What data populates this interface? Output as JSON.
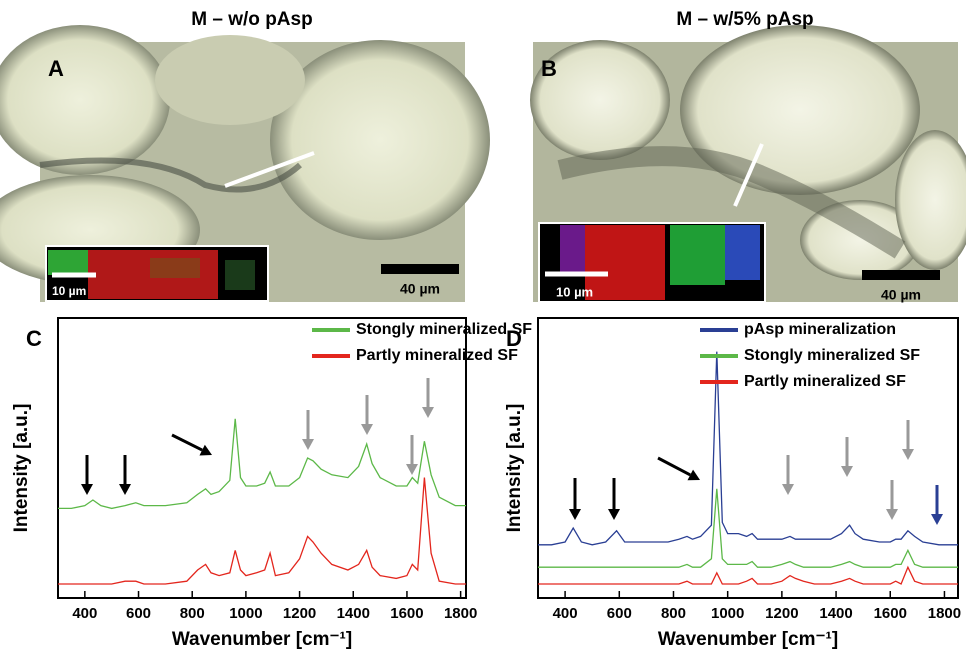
{
  "panels": [
    {
      "title": "M – w/o pAsp",
      "label": "A",
      "scale_bar": "40 µm",
      "inset_scale_bar": "10 µm"
    },
    {
      "title": "M – w/5% pAsp",
      "label": "B",
      "scale_bar": "40 µm",
      "inset_scale_bar": "10 µm"
    }
  ],
  "chart_data": [
    {
      "type": "line",
      "panel_label": "C",
      "x_label": "Wavenumber [cm⁻¹]",
      "y_label": "Intensity [a.u.]",
      "xlim": [
        300,
        1820
      ],
      "xticks": [
        400,
        600,
        800,
        1000,
        1200,
        1400,
        1600,
        1800
      ],
      "ylim": [
        0,
        100
      ],
      "legend": "upper right",
      "x": [
        300,
        350,
        400,
        430,
        460,
        500,
        550,
        590,
        620,
        700,
        780,
        820,
        850,
        870,
        900,
        940,
        960,
        980,
        1000,
        1040,
        1070,
        1090,
        1110,
        1160,
        1200,
        1230,
        1250,
        1280,
        1320,
        1380,
        1420,
        1450,
        1470,
        1500,
        1560,
        1600,
        1620,
        1640,
        1665,
        1690,
        1720,
        1780,
        1820
      ],
      "series": [
        {
          "name": "Stongly mineralized SF",
          "color": "#5cb848",
          "values": [
            32,
            32,
            33,
            35,
            33,
            32,
            33,
            34,
            33,
            33,
            34,
            37,
            39,
            37,
            38,
            42,
            64,
            43,
            40,
            40,
            41,
            45,
            40,
            40,
            43,
            50,
            49,
            46,
            44,
            43,
            47,
            55,
            48,
            43,
            40,
            40,
            43,
            41,
            56,
            44,
            36,
            33,
            33
          ]
        },
        {
          "name": "Partly mineralized SF",
          "color": "#e3261d",
          "values": [
            5,
            5,
            5,
            5,
            5,
            5,
            6,
            6,
            5,
            5,
            6,
            10,
            12,
            9,
            8,
            9,
            17,
            10,
            8,
            9,
            10,
            16,
            8,
            9,
            14,
            22,
            20,
            16,
            12,
            10,
            12,
            17,
            11,
            8,
            7,
            8,
            12,
            10,
            43,
            16,
            6,
            5,
            5
          ]
        }
      ]
    },
    {
      "type": "line",
      "panel_label": "D",
      "x_label": "Wavenumber [cm⁻¹]",
      "y_label": "Intensity [a.u.]",
      "xlim": [
        300,
        1850
      ],
      "xticks": [
        400,
        600,
        800,
        1000,
        1200,
        1400,
        1600,
        1800
      ],
      "ylim": [
        0,
        100
      ],
      "legend": "upper right",
      "x": [
        300,
        350,
        400,
        430,
        460,
        500,
        550,
        590,
        620,
        700,
        780,
        820,
        850,
        870,
        900,
        940,
        960,
        980,
        1000,
        1040,
        1070,
        1090,
        1110,
        1160,
        1200,
        1230,
        1250,
        1280,
        1320,
        1380,
        1420,
        1450,
        1470,
        1500,
        1560,
        1600,
        1620,
        1640,
        1665,
        1690,
        1720,
        1780,
        1850
      ],
      "series": [
        {
          "name": "pAsp mineralization",
          "color": "#2a3f94",
          "values": [
            19,
            19,
            20,
            25,
            20,
            19,
            20,
            24,
            20,
            20,
            20,
            21,
            22,
            21,
            22,
            26,
            88,
            27,
            23,
            23,
            22,
            23,
            21,
            21,
            21,
            22,
            21,
            21,
            21,
            21,
            23,
            26,
            23,
            21,
            20,
            20,
            21,
            21,
            24,
            22,
            20,
            19,
            19
          ]
        },
        {
          "name": "Stongly mineralized SF",
          "color": "#5cb848",
          "values": [
            11,
            11,
            11,
            11,
            11,
            11,
            11,
            11,
            11,
            11,
            11,
            11,
            12,
            11,
            11,
            14,
            39,
            14,
            12,
            12,
            12,
            13,
            11,
            11,
            12,
            13,
            12,
            11,
            11,
            11,
            12,
            13,
            12,
            11,
            11,
            11,
            12,
            12,
            17,
            12,
            11,
            11,
            11
          ]
        },
        {
          "name": "Partly mineralized SF",
          "color": "#e3261d",
          "values": [
            5,
            5,
            5,
            5,
            5,
            5,
            5,
            5,
            5,
            5,
            5,
            5,
            6,
            5,
            5,
            5,
            9,
            5,
            5,
            5,
            6,
            7,
            5,
            5,
            6,
            8,
            7,
            6,
            5,
            5,
            6,
            7,
            6,
            5,
            5,
            5,
            6,
            5,
            11,
            6,
            5,
            5,
            5
          ]
        }
      ]
    }
  ]
}
